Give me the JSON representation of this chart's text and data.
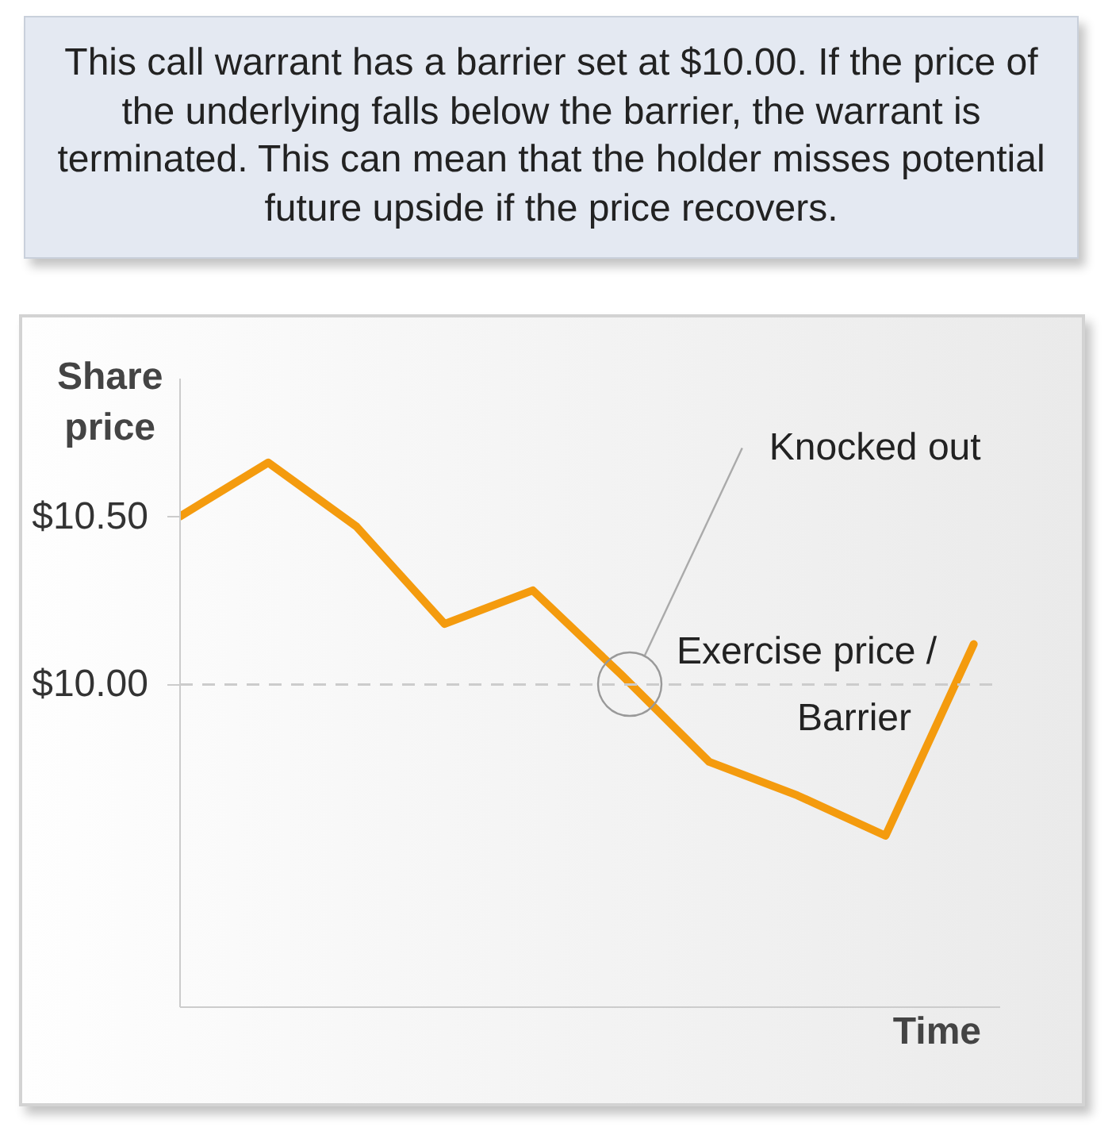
{
  "chart_data": {
    "type": "line",
    "title": "This call warrant has a barrier set at $10.00. If the price of the underlying falls below the barrier, the warrant is terminated. This can mean that the holder misses potential future upside if the price recovers.",
    "ylabel": "Share price",
    "xlabel": "Time",
    "categories": [
      null,
      null,
      null,
      null,
      null,
      null,
      null,
      null,
      null,
      null
    ],
    "series": [
      {
        "color": "#f49b0e",
        "values": [
          10.5,
          10.66,
          10.47,
          10.18,
          10.28,
          10.03,
          9.77,
          9.67,
          9.55,
          10.12
        ]
      }
    ],
    "ylim": [
      9.04,
      10.91
    ],
    "yticks": [
      {
        "value": 10.5,
        "label": "$10.50"
      },
      {
        "value": 10.0,
        "label": "$10.00"
      }
    ],
    "ref_lines": [
      {
        "axis": "y",
        "value": 10.0,
        "label": "Exercise price / Barrier",
        "color": "#cccccc",
        "line_style": "dashed"
      }
    ],
    "annotations": [
      "Knocked out"
    ],
    "tick_labels": "y"
  }
}
